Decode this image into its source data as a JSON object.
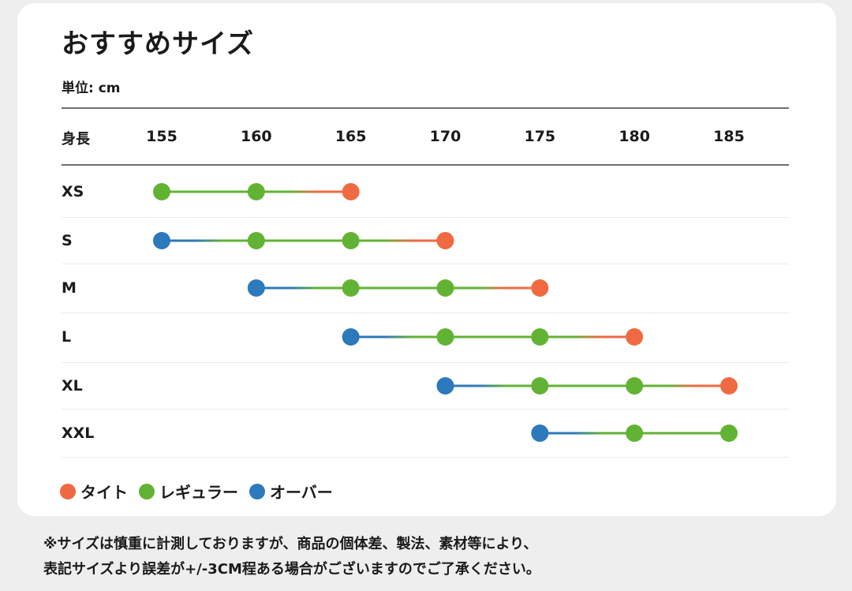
{
  "title": "おすすめサイズ",
  "unit": "単位: cm",
  "height_label": "身長",
  "colors": {
    "tight": "#ef6a42",
    "regular": "#62b333",
    "over": "#2c79bb"
  },
  "chart_data": {
    "type": "dot-range",
    "title": "おすすめサイズ",
    "xlabel": "身長",
    "unit": "cm",
    "x_ticks": [
      "155",
      "160",
      "165",
      "170",
      "175",
      "180",
      "185"
    ],
    "xlim": [
      155,
      185
    ],
    "sizes": [
      {
        "label": "XS",
        "points": [
          {
            "height": 155,
            "fit": "regular"
          },
          {
            "height": 160,
            "fit": "regular"
          },
          {
            "height": 165,
            "fit": "tight"
          }
        ]
      },
      {
        "label": "S",
        "points": [
          {
            "height": 155,
            "fit": "over"
          },
          {
            "height": 160,
            "fit": "regular"
          },
          {
            "height": 165,
            "fit": "regular"
          },
          {
            "height": 170,
            "fit": "tight"
          }
        ]
      },
      {
        "label": "M",
        "points": [
          {
            "height": 160,
            "fit": "over"
          },
          {
            "height": 165,
            "fit": "regular"
          },
          {
            "height": 170,
            "fit": "regular"
          },
          {
            "height": 175,
            "fit": "tight"
          }
        ]
      },
      {
        "label": "L",
        "points": [
          {
            "height": 165,
            "fit": "over"
          },
          {
            "height": 170,
            "fit": "regular"
          },
          {
            "height": 175,
            "fit": "regular"
          },
          {
            "height": 180,
            "fit": "tight"
          }
        ]
      },
      {
        "label": "XL",
        "points": [
          {
            "height": 170,
            "fit": "over"
          },
          {
            "height": 175,
            "fit": "regular"
          },
          {
            "height": 180,
            "fit": "regular"
          },
          {
            "height": 185,
            "fit": "tight"
          }
        ]
      },
      {
        "label": "XXL",
        "points": [
          {
            "height": 175,
            "fit": "over"
          },
          {
            "height": 180,
            "fit": "regular"
          },
          {
            "height": 185,
            "fit": "regular"
          }
        ]
      }
    ],
    "legend": [
      {
        "key": "tight",
        "label": "タイト"
      },
      {
        "key": "regular",
        "label": "レギュラー"
      },
      {
        "key": "over",
        "label": "オーバー"
      }
    ]
  },
  "note": {
    "line1": "※サイズは慎重に計測しておりますが、商品の個体差、製法、素材等により、",
    "line2": "表記サイズより誤差が+/-3CM程ある場合がございますのでご了承ください。"
  }
}
